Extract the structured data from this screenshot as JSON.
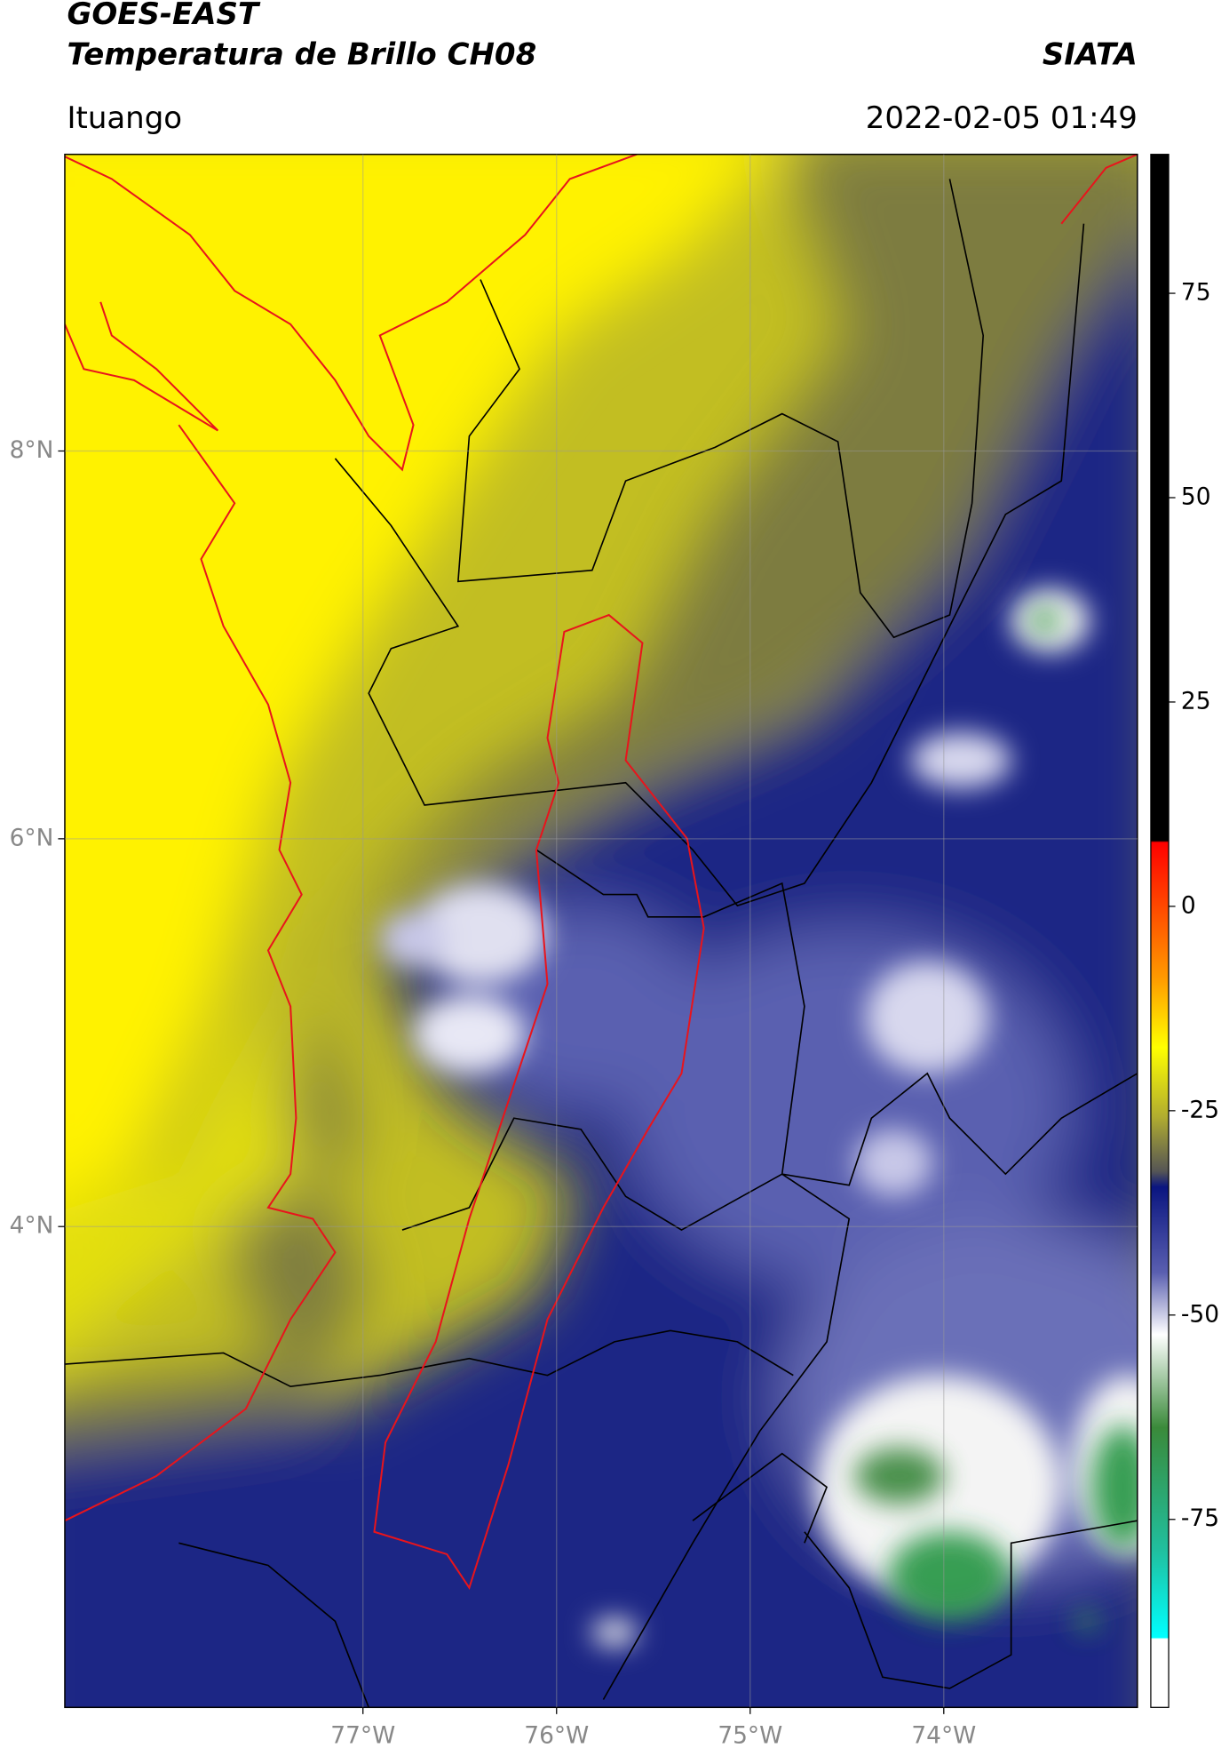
{
  "chart_data": {
    "type": "map",
    "title": "GOES-EAST",
    "subtitle": "Temperatura de Brillo CH08",
    "source": "SIATA",
    "location": "Ituango",
    "timestamp": "2022-02-05 01:49",
    "xlim": [
      -78.54,
      -73.0
    ],
    "ylim": [
      1.52,
      9.53
    ],
    "xticks": [
      {
        "value": -77,
        "label": "77°W"
      },
      {
        "value": -76,
        "label": "76°W"
      },
      {
        "value": -75,
        "label": "75°W"
      },
      {
        "value": -74,
        "label": "74°W"
      }
    ],
    "yticks": [
      {
        "value": 4,
        "label": "4°N"
      },
      {
        "value": 6,
        "label": "6°N"
      },
      {
        "value": 8,
        "label": "8°N"
      }
    ],
    "grid": true,
    "colorbar": {
      "lim": [
        -98,
        92
      ],
      "ticks": [
        75,
        50,
        25,
        0,
        -25,
        -50,
        -75
      ]
    }
  }
}
